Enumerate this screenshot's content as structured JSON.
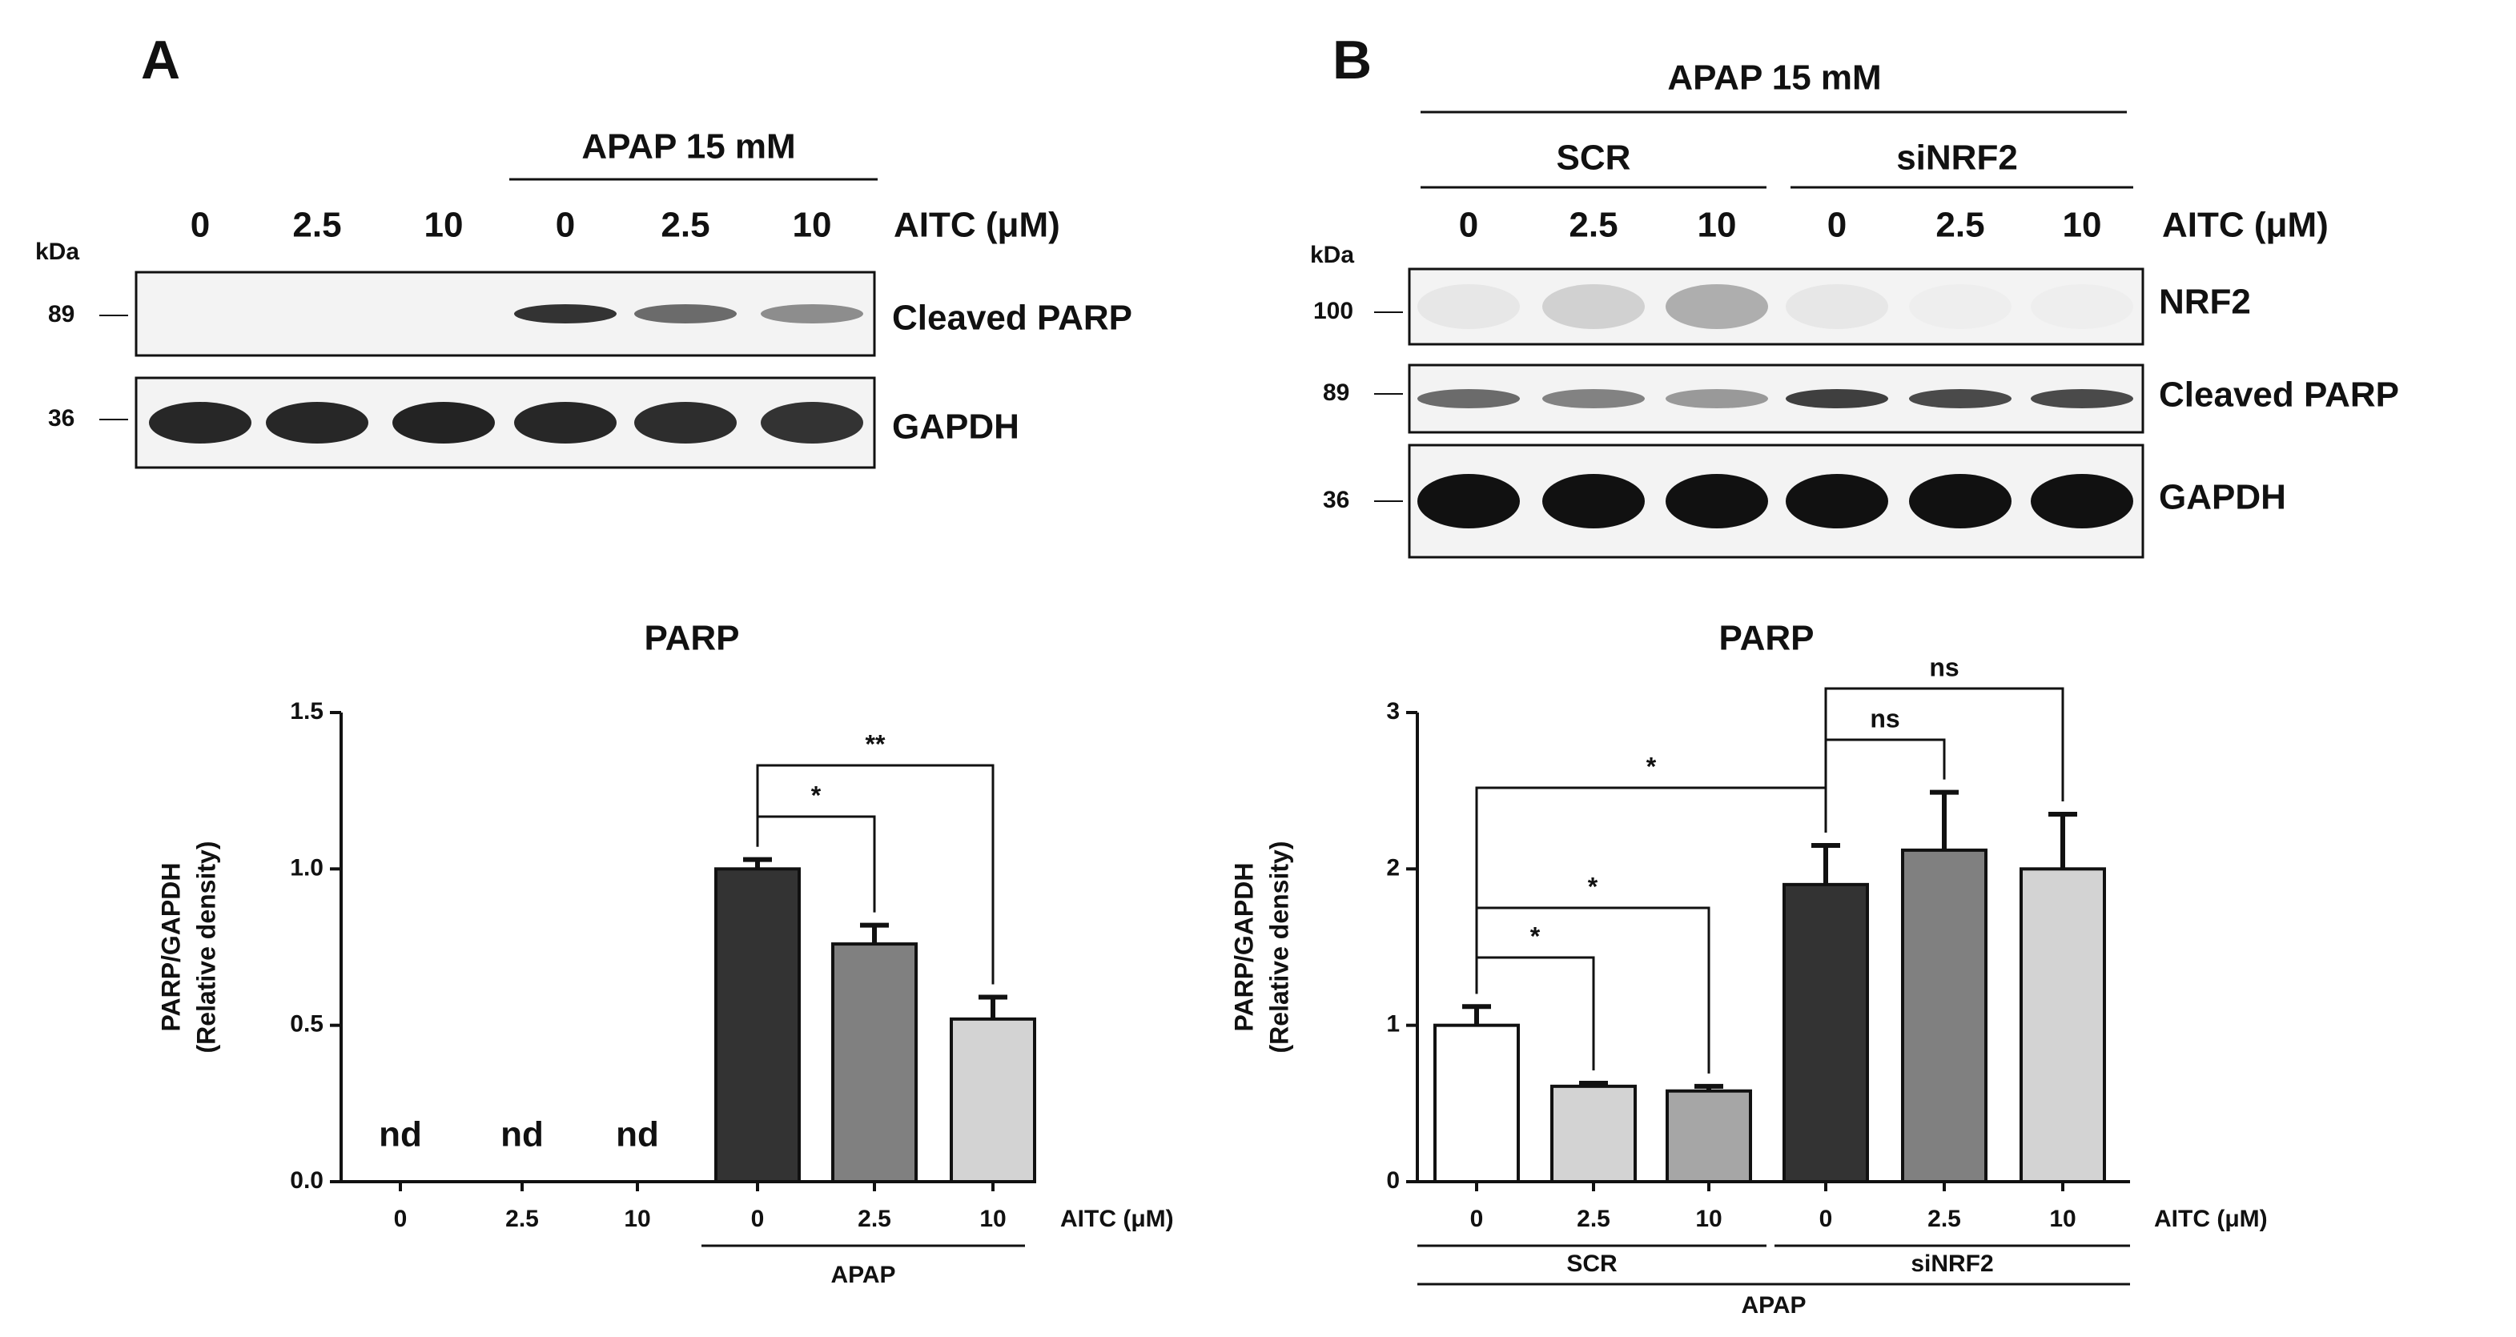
{
  "panel_a": {
    "label": "A",
    "treatment": "APAP 15 mM",
    "lanes": [
      "0",
      "2.5",
      "10",
      "0",
      "2.5",
      "10"
    ],
    "lane_axis": "AITC (μM)",
    "kda": "kDa",
    "markers": [
      "89",
      "36"
    ],
    "blots": [
      "Cleaved PARP",
      "GAPDH"
    ]
  },
  "panel_b": {
    "label": "B",
    "treatment": "APAP 15 mM",
    "groups": [
      "SCR",
      "siNRF2"
    ],
    "lanes": [
      "0",
      "2.5",
      "10",
      "0",
      "2.5",
      "10"
    ],
    "lane_axis": "AITC (μM)",
    "kda": "kDa",
    "markers": [
      "100",
      "89",
      "36"
    ],
    "blots": [
      "NRF2",
      "Cleaved PARP",
      "GAPDH"
    ]
  },
  "chart_data": [
    {
      "type": "bar",
      "title": "PARP",
      "y_label": [
        "PARP/GAPDH",
        "(Relative density)"
      ],
      "categories": [
        "0",
        "2.5",
        "10",
        "0",
        "2.5",
        "10"
      ],
      "values": [
        null,
        null,
        null,
        1.0,
        0.76,
        0.52
      ],
      "errors": [
        null,
        null,
        null,
        0.03,
        0.06,
        0.07
      ],
      "value_labels": [
        "nd",
        "nd",
        "nd",
        null,
        null,
        null
      ],
      "colors": [
        "#333333",
        "#333333",
        "#333333",
        "#333333",
        "#808080",
        "#d3d3d3"
      ],
      "ylim": [
        0,
        1.5
      ],
      "yticks": [
        {
          "value": 0,
          "label": "0.0"
        },
        {
          "value": 0.5,
          "label": "0.5"
        },
        {
          "value": 1,
          "label": "1.0"
        },
        {
          "value": 1.5,
          "label": "1.5"
        }
      ],
      "x_unit": "AITC (μM)",
      "groups": [
        "APAP"
      ],
      "significance": [
        "*",
        "**"
      ]
    },
    {
      "type": "bar",
      "title": "PARP",
      "y_label": [
        "PARP/GAPDH",
        "(Relative density)"
      ],
      "categories": [
        "0",
        "2.5",
        "10",
        "0",
        "2.5",
        "10"
      ],
      "values": [
        1.0,
        0.61,
        0.58,
        1.9,
        2.12,
        2.0
      ],
      "errors": [
        0.12,
        0.02,
        0.03,
        0.25,
        0.37,
        0.35
      ],
      "colors": [
        "#ffffff",
        "#d3d3d3",
        "#a6a6a6",
        "#333333",
        "#808080",
        "#d3d3d3"
      ],
      "ylim": [
        0,
        3
      ],
      "yticks": [
        0,
        1,
        2,
        3
      ],
      "x_unit": "AITC (μM)",
      "groups": [
        "SCR",
        "siNRF2",
        "APAP"
      ],
      "significance": [
        "*",
        "*",
        "*",
        "ns",
        "ns"
      ]
    }
  ]
}
